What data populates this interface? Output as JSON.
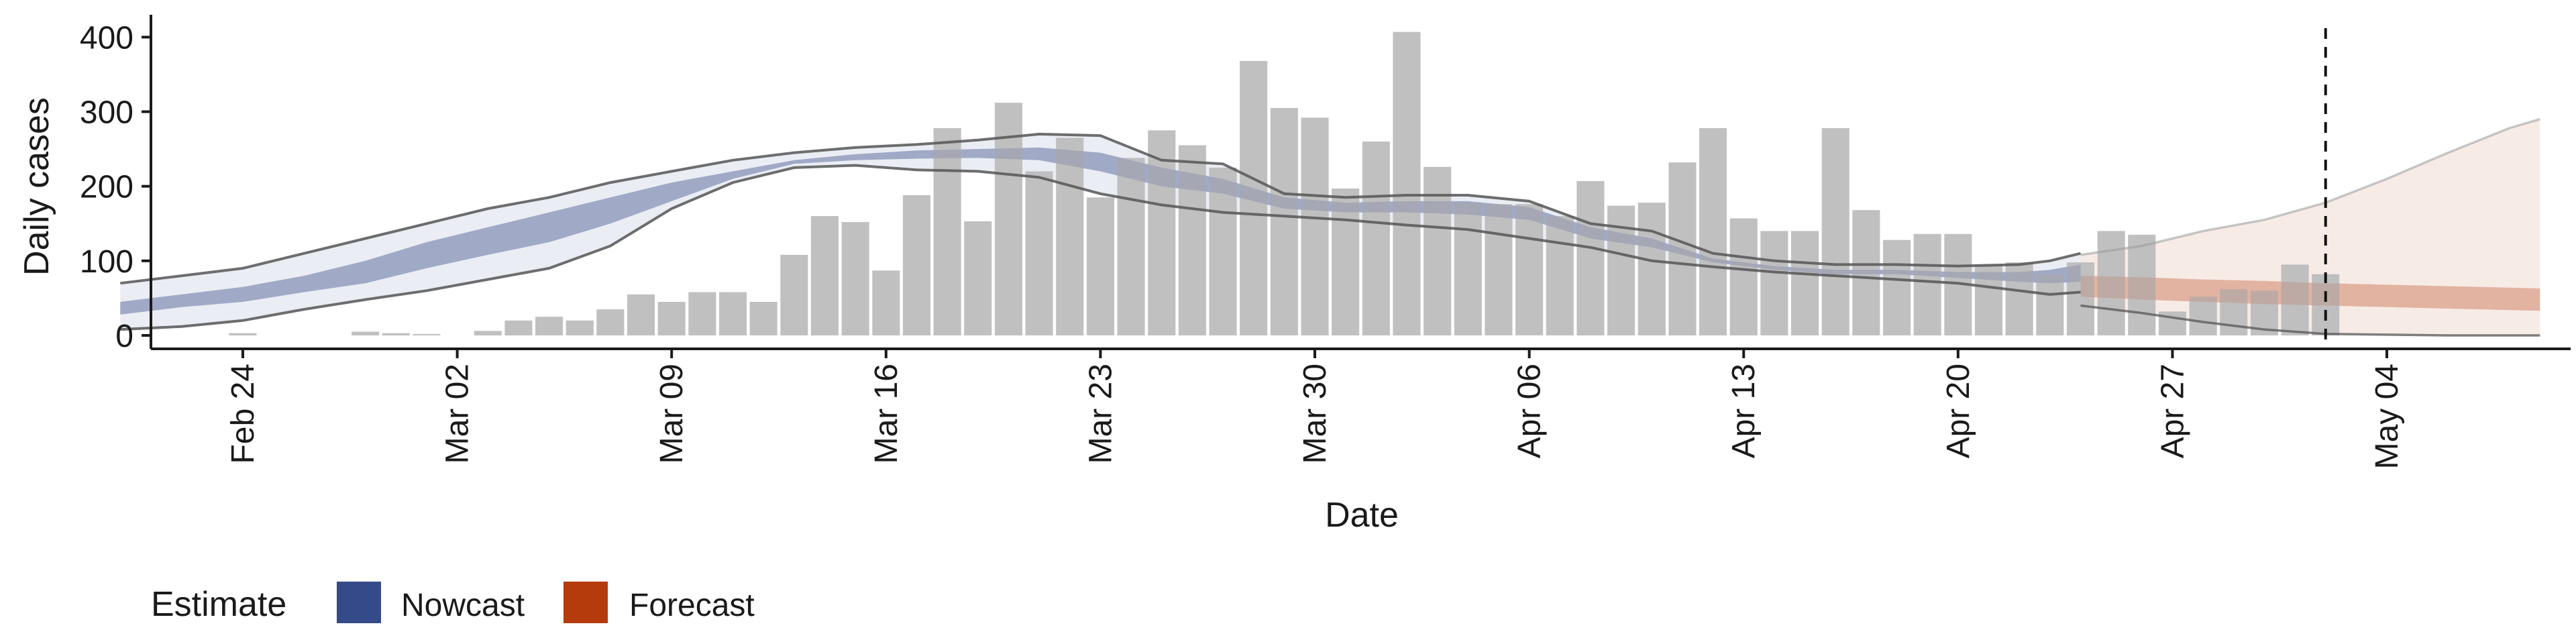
{
  "chart_data": {
    "type": "bar",
    "xlabel": "Date",
    "ylabel": "Daily cases",
    "x_axis_type": "date",
    "xlim": [
      "2020-02-21",
      "2020-05-10"
    ],
    "ylim": [
      -18,
      430
    ],
    "y_ticks": [
      0,
      100,
      200,
      300,
      400
    ],
    "x_ticks": [
      {
        "date": "2020-02-24",
        "label": "Feb 24"
      },
      {
        "date": "2020-03-02",
        "label": "Mar 02"
      },
      {
        "date": "2020-03-09",
        "label": "Mar 09"
      },
      {
        "date": "2020-03-16",
        "label": "Mar 16"
      },
      {
        "date": "2020-03-23",
        "label": "Mar 23"
      },
      {
        "date": "2020-03-30",
        "label": "Mar 30"
      },
      {
        "date": "2020-04-06",
        "label": "Apr 06"
      },
      {
        "date": "2020-04-13",
        "label": "Apr 13"
      },
      {
        "date": "2020-04-20",
        "label": "Apr 20"
      },
      {
        "date": "2020-04-27",
        "label": "Apr 27"
      },
      {
        "date": "2020-05-04",
        "label": "May 04"
      }
    ],
    "grid": false,
    "legend": {
      "title": "Estimate",
      "placement": "bottom-left",
      "entries": [
        {
          "label": "Nowcast",
          "color": "#354a89"
        },
        {
          "label": "Forecast",
          "color": "#b53a0c"
        }
      ]
    },
    "reference_line": {
      "date": "2020-05-02",
      "style": "dashed"
    },
    "bar_color": "#bdbdbd",
    "cases": {
      "dates": [
        "2020-02-24",
        "2020-02-25",
        "2020-02-26",
        "2020-02-27",
        "2020-02-28",
        "2020-02-29",
        "2020-03-01",
        "2020-03-02",
        "2020-03-03",
        "2020-03-04",
        "2020-03-05",
        "2020-03-06",
        "2020-03-07",
        "2020-03-08",
        "2020-03-09",
        "2020-03-10",
        "2020-03-11",
        "2020-03-12",
        "2020-03-13",
        "2020-03-14",
        "2020-03-15",
        "2020-03-16",
        "2020-03-17",
        "2020-03-18",
        "2020-03-19",
        "2020-03-20",
        "2020-03-21",
        "2020-03-22",
        "2020-03-23",
        "2020-03-24",
        "2020-03-25",
        "2020-03-26",
        "2020-03-27",
        "2020-03-28",
        "2020-03-29",
        "2020-03-30",
        "2020-03-31",
        "2020-04-01",
        "2020-04-02",
        "2020-04-03",
        "2020-04-04",
        "2020-04-05",
        "2020-04-06",
        "2020-04-07",
        "2020-04-08",
        "2020-04-09",
        "2020-04-10",
        "2020-04-11",
        "2020-04-12",
        "2020-04-13",
        "2020-04-14",
        "2020-04-15",
        "2020-04-16",
        "2020-04-17",
        "2020-04-18",
        "2020-04-19",
        "2020-04-20",
        "2020-04-21",
        "2020-04-22",
        "2020-04-23",
        "2020-04-24",
        "2020-04-25",
        "2020-04-26",
        "2020-04-27",
        "2020-04-28",
        "2020-04-29",
        "2020-04-30",
        "2020-05-01",
        "2020-05-02"
      ],
      "values": [
        3,
        0,
        0,
        0,
        5,
        3,
        2,
        0,
        6,
        20,
        25,
        20,
        35,
        55,
        45,
        58,
        58,
        45,
        108,
        160,
        152,
        87,
        188,
        278,
        153,
        312,
        220,
        265,
        185,
        238,
        275,
        255,
        225,
        368,
        305,
        292,
        197,
        260,
        407,
        226,
        178,
        176,
        176,
        160,
        207,
        174,
        178,
        232,
        278,
        157,
        140,
        140,
        278,
        168,
        128,
        136,
        136,
        95,
        98,
        82,
        98,
        140,
        135,
        32,
        52,
        62,
        60,
        95,
        82
      ]
    },
    "nowcast": {
      "dates": [
        "2020-02-20",
        "2020-02-22",
        "2020-02-24",
        "2020-02-26",
        "2020-02-28",
        "2020-03-01",
        "2020-03-03",
        "2020-03-05",
        "2020-03-07",
        "2020-03-09",
        "2020-03-11",
        "2020-03-13",
        "2020-03-15",
        "2020-03-17",
        "2020-03-19",
        "2020-03-21",
        "2020-03-23",
        "2020-03-25",
        "2020-03-27",
        "2020-03-29",
        "2020-03-31",
        "2020-04-02",
        "2020-04-04",
        "2020-04-06",
        "2020-04-08",
        "2020-04-10",
        "2020-04-12",
        "2020-04-14",
        "2020-04-16",
        "2020-04-18",
        "2020-04-20",
        "2020-04-22",
        "2020-04-23",
        "2020-04-24"
      ],
      "upper90": [
        70,
        80,
        90,
        110,
        130,
        150,
        170,
        185,
        205,
        220,
        235,
        245,
        252,
        256,
        262,
        270,
        268,
        235,
        230,
        190,
        185,
        188,
        188,
        180,
        150,
        140,
        110,
        100,
        95,
        95,
        93,
        95,
        100,
        110
      ],
      "lower90": [
        8,
        12,
        20,
        35,
        48,
        60,
        75,
        90,
        120,
        170,
        205,
        225,
        228,
        222,
        220,
        212,
        190,
        175,
        165,
        160,
        155,
        148,
        142,
        130,
        118,
        100,
        92,
        85,
        80,
        75,
        70,
        60,
        55,
        58
      ],
      "upper50": [
        45,
        55,
        65,
        80,
        100,
        125,
        145,
        165,
        185,
        205,
        220,
        235,
        243,
        248,
        250,
        252,
        245,
        225,
        210,
        185,
        178,
        180,
        180,
        172,
        145,
        130,
        103,
        93,
        88,
        88,
        85,
        85,
        88,
        95
      ],
      "lower50": [
        28,
        38,
        45,
        58,
        70,
        90,
        108,
        125,
        150,
        180,
        210,
        230,
        235,
        237,
        238,
        235,
        220,
        200,
        190,
        170,
        165,
        165,
        162,
        155,
        130,
        118,
        98,
        88,
        82,
        82,
        77,
        72,
        70,
        72
      ]
    },
    "forecast": {
      "dates": [
        "2020-04-24",
        "2020-04-26",
        "2020-04-28",
        "2020-04-30",
        "2020-05-02",
        "2020-05-04",
        "2020-05-06",
        "2020-05-08",
        "2020-05-09"
      ],
      "upper90": [
        108,
        120,
        140,
        155,
        178,
        210,
        245,
        278,
        290
      ],
      "lower90": [
        40,
        30,
        18,
        8,
        2,
        1,
        0,
        0,
        0
      ],
      "upper50": [
        80,
        78,
        75,
        73,
        70,
        68,
        66,
        64,
        63
      ],
      "lower50": [
        52,
        48,
        45,
        42,
        40,
        38,
        36,
        34,
        33
      ]
    }
  }
}
